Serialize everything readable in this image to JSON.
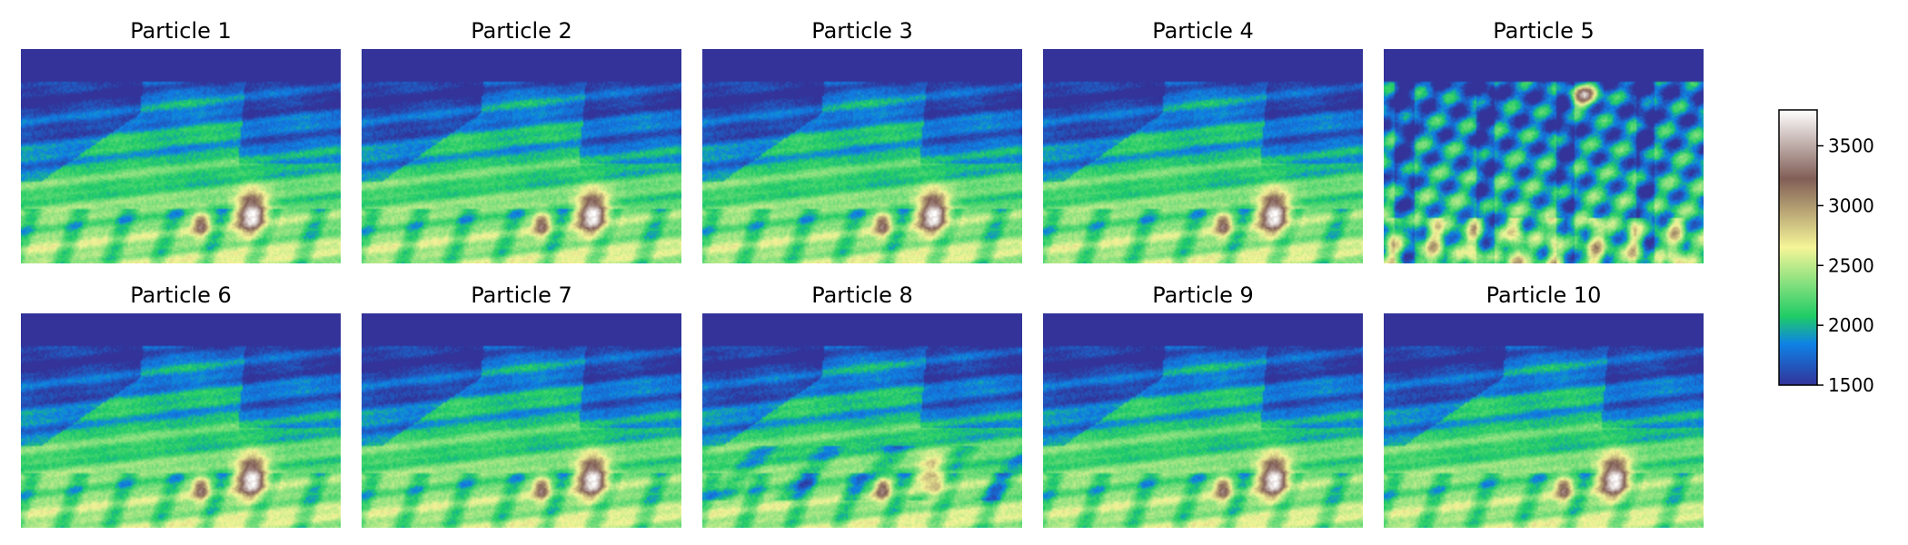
{
  "chart_data": {
    "type": "heatmap",
    "title": "",
    "panels": [
      {
        "title": "Particle 1",
        "variant": "normal"
      },
      {
        "title": "Particle 2",
        "variant": "normal"
      },
      {
        "title": "Particle 3",
        "variant": "normal"
      },
      {
        "title": "Particle 4",
        "variant": "normal"
      },
      {
        "title": "Particle 5",
        "variant": "outlier"
      },
      {
        "title": "Particle 6",
        "variant": "normal"
      },
      {
        "title": "Particle 7",
        "variant": "normal"
      },
      {
        "title": "Particle 8",
        "variant": "perturbed"
      },
      {
        "title": "Particle 9",
        "variant": "normal"
      },
      {
        "title": "Particle 10",
        "variant": "normal"
      }
    ],
    "colorbar": {
      "range": [
        1500,
        3800
      ],
      "ticks": [
        1500,
        2000,
        2500,
        3000,
        3500
      ],
      "colormap": "terrain",
      "colors": [
        "#333399",
        "#0e82e6",
        "#1fcc66",
        "#f5f598",
        "#815e56",
        "#ffffff"
      ]
    },
    "axes_visible": false,
    "grid": false
  }
}
